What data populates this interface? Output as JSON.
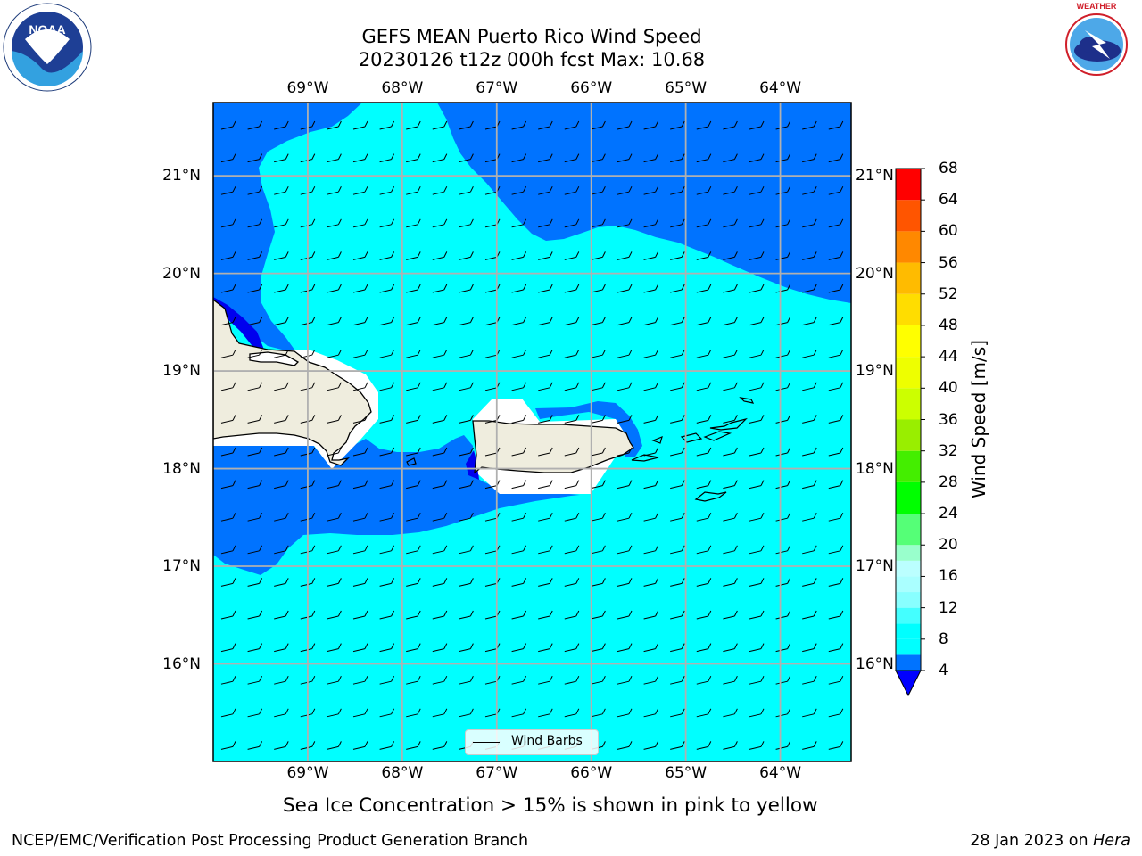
{
  "header": {
    "title_line1": "GEFS MEAN Puerto Rico Wind Speed",
    "title_line2": "20230126 t12z 000h fcst   Max: 10.68"
  },
  "logos": {
    "left": "NOAA",
    "right": "NATIONAL WEATHER SERVICE"
  },
  "map": {
    "lon_labels": [
      "69°W",
      "68°W",
      "67°W",
      "66°W",
      "65°W",
      "64°W"
    ],
    "lat_labels": [
      "21°N",
      "20°N",
      "19°N",
      "18°N",
      "17°N",
      "16°N"
    ],
    "lon_range": [
      -70.0,
      -63.25
    ],
    "lat_range": [
      15.0,
      21.75
    ],
    "grid": true,
    "legend_label": "Wind Barbs",
    "wind_direction": "easterly"
  },
  "colorbar": {
    "label": "Wind Speed [m/s]",
    "ticks": [
      "68",
      "64",
      "60",
      "56",
      "52",
      "48",
      "44",
      "40",
      "36",
      "32",
      "28",
      "24",
      "20",
      "16",
      "12",
      "8",
      "4"
    ],
    "levels": [
      4,
      6,
      8,
      10,
      12,
      14,
      16,
      18,
      20,
      24,
      28,
      32,
      36,
      40,
      44,
      48,
      52,
      56,
      60,
      64,
      68
    ],
    "colors": [
      "#0073ff",
      "#00ffff",
      "#00ffff",
      "#44ffff",
      "#88ffff",
      "#aaffff",
      "#bbffff",
      "#99ffcc",
      "#55ff77",
      "#00ff00",
      "#44ee00",
      "#99ee00",
      "#ccff00",
      "#eeff00",
      "#ffff00",
      "#ffdd00",
      "#ffbb00",
      "#ff8800",
      "#ff5500",
      "#ff0000"
    ],
    "under_color": "#0000ff"
  },
  "colors": {
    "fill_4_6": "#0073ff",
    "fill_6_8": "#00ffff",
    "fill_lt_4": "#0000ee",
    "land": "#efedde",
    "grid": "#b0b0b0"
  },
  "footer": {
    "subtitle": "Sea Ice Concentration > 15% is shown in pink to yellow",
    "left": "NCEP/EMC/Verification Post Processing Product Generation Branch",
    "right_prefix": "28 Jan 2023 on ",
    "right_host": "Hera"
  }
}
